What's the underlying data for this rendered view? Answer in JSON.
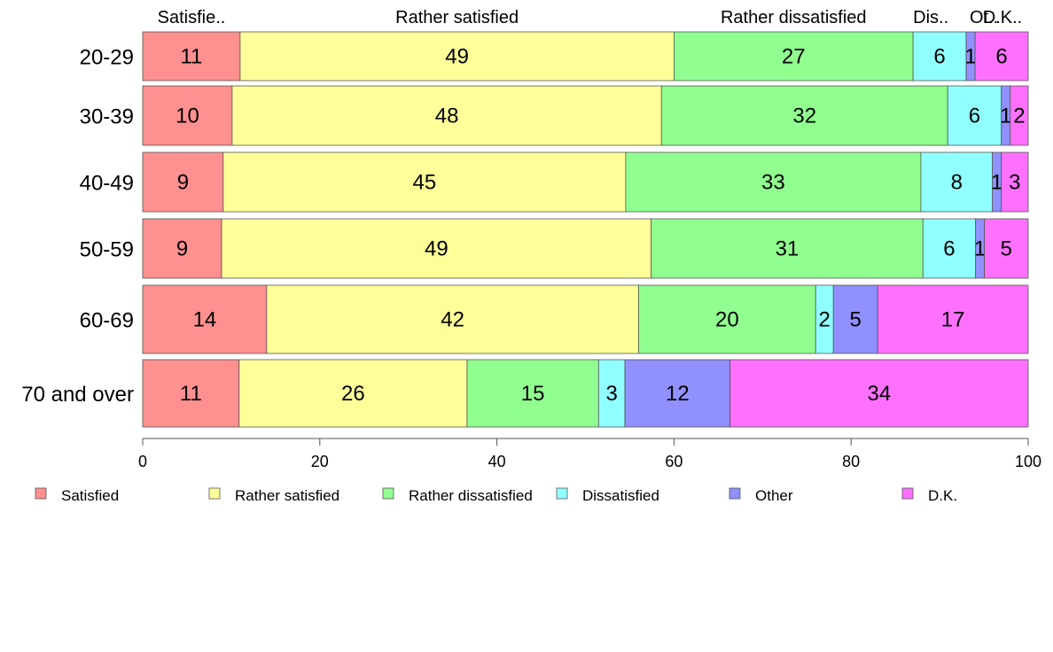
{
  "chart_data": {
    "type": "bar",
    "orientation": "horizontal",
    "stacked": true,
    "categories": [
      "20-29",
      "30-39",
      "40-49",
      "50-59",
      "60-69",
      "70 and over"
    ],
    "series": [
      {
        "name": "Satisfied",
        "color": "#ff9090",
        "values": [
          11,
          10,
          9,
          9,
          14,
          11
        ]
      },
      {
        "name": "Rather satisfied",
        "color": "#ffff99",
        "values": [
          49,
          48,
          45,
          49,
          42,
          26
        ]
      },
      {
        "name": "Rather dissatisfied",
        "color": "#90ff90",
        "values": [
          27,
          32,
          33,
          31,
          20,
          15
        ]
      },
      {
        "name": "Dissatisfied",
        "color": "#90ffff",
        "values": [
          6,
          6,
          8,
          6,
          2,
          3
        ]
      },
      {
        "name": "Other",
        "color": "#9090ff",
        "values": [
          1,
          1,
          1,
          1,
          5,
          12
        ]
      },
      {
        "name": "D.K.",
        "color": "#ff70ff",
        "values": [
          6,
          2,
          3,
          5,
          17,
          34
        ]
      }
    ],
    "top_labels": [
      "Satisfie..",
      "Rather satisfied",
      "Rather dissatisfied",
      "Dis..",
      "Ot..",
      "D.K.."
    ],
    "xlim": [
      0,
      100
    ],
    "xticks": [
      "0",
      "20",
      "40",
      "60",
      "80",
      "100"
    ],
    "grid": false,
    "legend_position": "bottom"
  }
}
